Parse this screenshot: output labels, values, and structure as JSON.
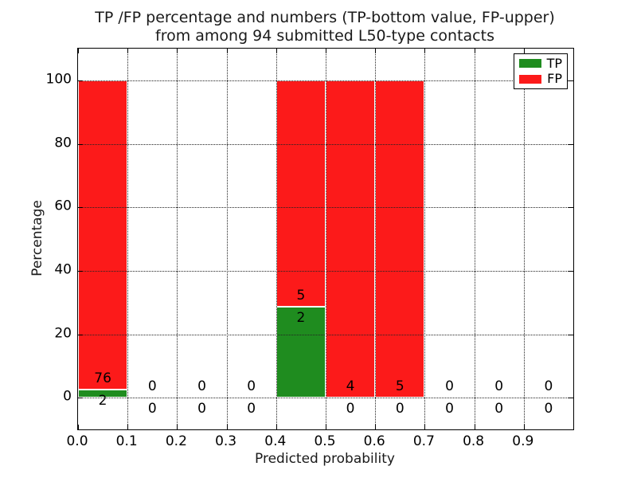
{
  "title": {
    "line1": "TP /FP percentage and numbers (TP-bottom value, FP-upper)",
    "line2": "from among 94 submitted L50-type contacts"
  },
  "legend": {
    "entries": [
      {
        "label": "TP",
        "color": "#1f8c1f"
      },
      {
        "label": "FP",
        "color": "#fc1a1a"
      }
    ],
    "position": "upper right"
  },
  "chart_data": {
    "type": "bar",
    "stacked": true,
    "normalized": "percent per bin (TP+FP = 100%)",
    "title": "TP /FP percentage and numbers (TP-bottom value, FP-upper)\nfrom among 94 submitted L50-type contacts",
    "xlabel": "Predicted probability",
    "ylabel": "Percentage",
    "total_contacts": 94,
    "xlim": [
      0.0,
      1.0
    ],
    "ylim": [
      -10,
      110
    ],
    "x_ticks": [
      "0.0",
      "0.1",
      "0.2",
      "0.3",
      "0.4",
      "0.5",
      "0.6",
      "0.7",
      "0.8",
      "0.9"
    ],
    "y_ticks": [
      "0",
      "20",
      "40",
      "60",
      "80",
      "100"
    ],
    "grid": "dotted, both axes, drawn over bars",
    "tp_color": "#1f8c1f",
    "fp_color": "#fc1a1a",
    "bins": [
      {
        "range": [
          0.0,
          0.1
        ],
        "tp": 2,
        "fp": 76
      },
      {
        "range": [
          0.1,
          0.2
        ],
        "tp": 0,
        "fp": 0
      },
      {
        "range": [
          0.2,
          0.3
        ],
        "tp": 0,
        "fp": 0
      },
      {
        "range": [
          0.3,
          0.4
        ],
        "tp": 0,
        "fp": 0
      },
      {
        "range": [
          0.4,
          0.5
        ],
        "tp": 2,
        "fp": 5
      },
      {
        "range": [
          0.5,
          0.6
        ],
        "tp": 0,
        "fp": 4
      },
      {
        "range": [
          0.6,
          0.7
        ],
        "tp": 0,
        "fp": 5
      },
      {
        "range": [
          0.7,
          0.8
        ],
        "tp": 0,
        "fp": 0
      },
      {
        "range": [
          0.8,
          0.9
        ],
        "tp": 0,
        "fp": 0
      },
      {
        "range": [
          0.9,
          1.0
        ],
        "tp": 0,
        "fp": 0
      }
    ]
  }
}
